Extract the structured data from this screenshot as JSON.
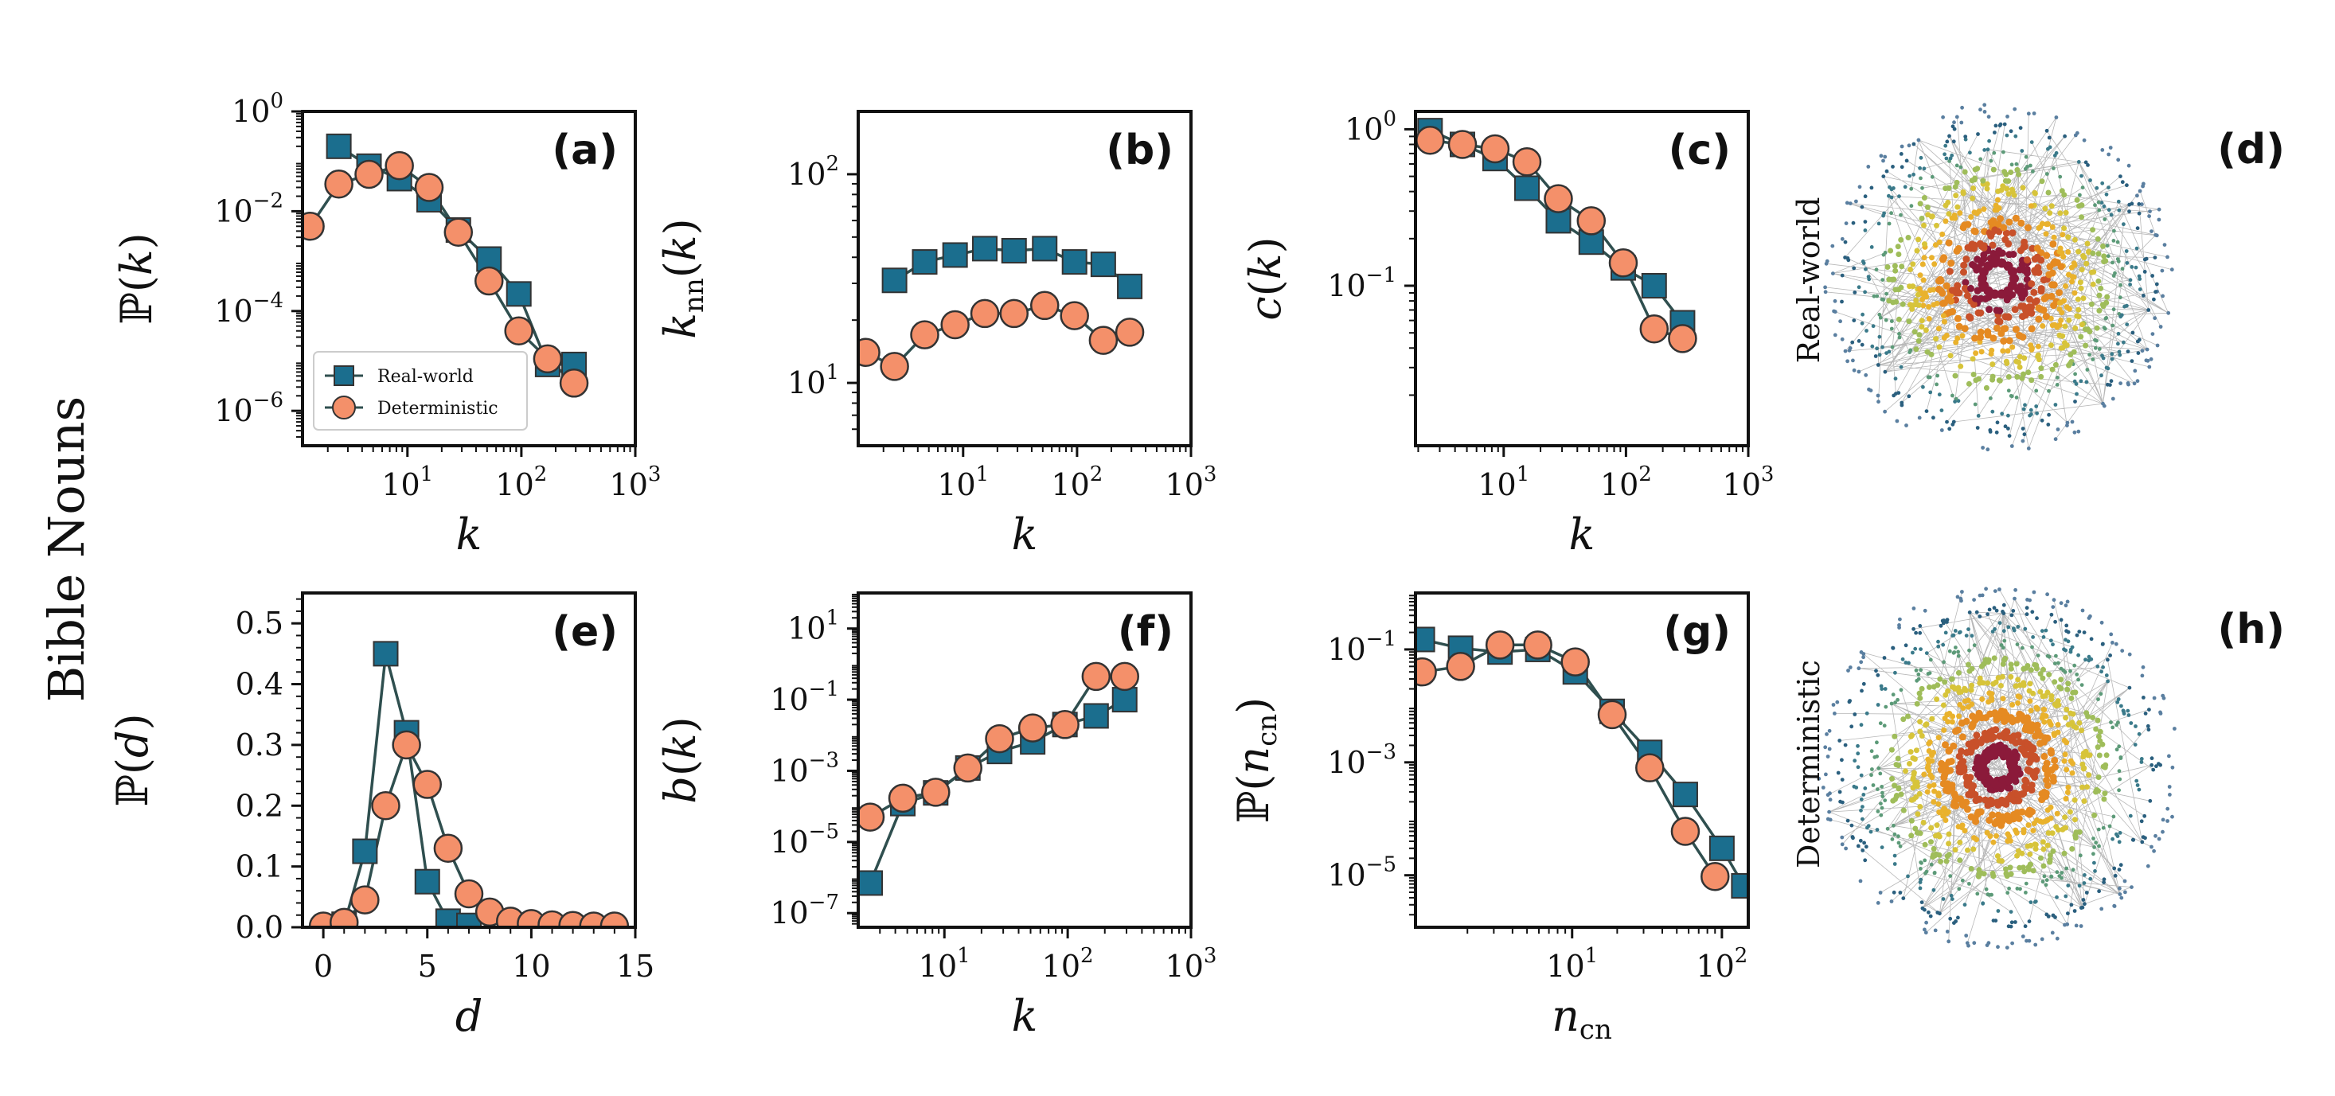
{
  "figure": {
    "row_title": "Bible Nouns",
    "colors": {
      "real": "#1b6e8e",
      "det": "#f4906a",
      "line": "#2f4f4f",
      "edge": "#333333"
    }
  },
  "legend": {
    "entries": [
      "Real-world",
      "Deterministic"
    ]
  },
  "network_panels": {
    "d": {
      "label": "(d)",
      "side_label": "Real-world"
    },
    "h": {
      "label": "(h)",
      "side_label": "Deterministic"
    }
  },
  "chart_data": [
    {
      "id": "a",
      "label": "(a)",
      "type": "line",
      "xscale": "log",
      "yscale": "log",
      "xlabel": "k",
      "ylabel": "ℙ(k)",
      "xlim": [
        1.2,
        1000
      ],
      "ylim": [
        2e-07,
        1
      ],
      "xticks": [
        {
          "v": 10,
          "base": "10",
          "exp": "1"
        },
        {
          "v": 100,
          "base": "10",
          "exp": "2"
        },
        {
          "v": 1000,
          "base": "10",
          "exp": "3"
        }
      ],
      "yticks": [
        {
          "v": 1,
          "base": "10",
          "exp": "0"
        },
        {
          "v": 0.01,
          "base": "10",
          "exp": "−2"
        },
        {
          "v": 0.0001,
          "base": "10",
          "exp": "−4"
        },
        {
          "v": 1e-06,
          "base": "10",
          "exp": "−6"
        }
      ],
      "legend": true,
      "series": [
        {
          "name": "Real-world",
          "marker": "square",
          "x": [
            2.5,
            4.6,
            8.5,
            15.5,
            28,
            52,
            95,
            170,
            290
          ],
          "y": [
            0.2,
            0.08,
            0.045,
            0.017,
            0.0042,
            0.0011,
            0.00022,
            8.5e-06,
            8.5e-06
          ]
        },
        {
          "name": "Deterministic",
          "marker": "circle",
          "x": [
            1.4,
            2.5,
            4.6,
            8.5,
            15.5,
            28,
            52,
            95,
            170,
            290
          ],
          "y": [
            0.005,
            0.035,
            0.055,
            0.082,
            0.03,
            0.0038,
            0.0004,
            4e-05,
            1.1e-05,
            3.6e-06
          ]
        }
      ]
    },
    {
      "id": "b",
      "label": "(b)",
      "type": "line",
      "xscale": "log",
      "yscale": "log",
      "xlabel": "k",
      "ylabel": "knn(k)",
      "xlim": [
        1.2,
        1000
      ],
      "ylim": [
        5,
        200
      ],
      "xticks": [
        {
          "v": 10,
          "base": "10",
          "exp": "1"
        },
        {
          "v": 100,
          "base": "10",
          "exp": "2"
        },
        {
          "v": 1000,
          "base": "10",
          "exp": "3"
        }
      ],
      "yticks": [
        {
          "v": 100,
          "base": "10",
          "exp": "2"
        },
        {
          "v": 10,
          "base": "10",
          "exp": "1"
        }
      ],
      "series": [
        {
          "name": "Real-world",
          "marker": "square",
          "x": [
            2.5,
            4.6,
            8.5,
            15.5,
            28,
            52,
            95,
            170,
            290
          ],
          "y": [
            31,
            38,
            41,
            44,
            43,
            44,
            38,
            37,
            29
          ]
        },
        {
          "name": "Deterministic",
          "marker": "circle",
          "x": [
            1.4,
            2.5,
            4.6,
            8.5,
            15.5,
            28,
            52,
            95,
            170,
            290
          ],
          "y": [
            14,
            12,
            17,
            19,
            21.5,
            21.5,
            23.5,
            21,
            16,
            17.5
          ]
        }
      ]
    },
    {
      "id": "c",
      "label": "(c)",
      "type": "line",
      "xscale": "log",
      "yscale": "log",
      "xlabel": "k",
      "ylabel": "c(k)",
      "xlim": [
        1.9,
        1000
      ],
      "ylim": [
        0.0095,
        1.3
      ],
      "xticks": [
        {
          "v": 10,
          "base": "10",
          "exp": "1"
        },
        {
          "v": 100,
          "base": "10",
          "exp": "2"
        },
        {
          "v": 1000,
          "base": "10",
          "exp": "3"
        }
      ],
      "yticks": [
        {
          "v": 1,
          "base": "10",
          "exp": "0"
        },
        {
          "v": 0.1,
          "base": "10",
          "exp": "−1"
        }
      ],
      "series": [
        {
          "name": "Real-world",
          "marker": "square",
          "x": [
            2.5,
            4.6,
            8.5,
            15.5,
            28,
            52,
            95,
            170,
            290
          ],
          "y": [
            0.98,
            0.8,
            0.65,
            0.42,
            0.26,
            0.19,
            0.13,
            0.1,
            0.058
          ]
        },
        {
          "name": "Deterministic",
          "marker": "circle",
          "x": [
            2.5,
            4.6,
            8.5,
            15.5,
            28,
            52,
            95,
            170,
            290
          ],
          "y": [
            0.85,
            0.8,
            0.75,
            0.62,
            0.36,
            0.26,
            0.14,
            0.053,
            0.046
          ]
        }
      ]
    },
    {
      "id": "e",
      "label": "(e)",
      "type": "line",
      "xscale": "linear",
      "yscale": "linear",
      "xlabel": "d",
      "ylabel": "ℙ(d)",
      "xlim": [
        -1,
        15
      ],
      "ylim": [
        0,
        0.55
      ],
      "xticks": [
        {
          "v": 0,
          "text": "0"
        },
        {
          "v": 5,
          "text": "5"
        },
        {
          "v": 10,
          "text": "10"
        },
        {
          "v": 15,
          "text": "15"
        }
      ],
      "yticks": [
        {
          "v": 0,
          "text": "0.0"
        },
        {
          "v": 0.1,
          "text": "0.1"
        },
        {
          "v": 0.2,
          "text": "0.2"
        },
        {
          "v": 0.3,
          "text": "0.3"
        },
        {
          "v": 0.4,
          "text": "0.4"
        },
        {
          "v": 0.5,
          "text": "0.5"
        }
      ],
      "series": [
        {
          "name": "Real-world",
          "marker": "square",
          "x": [
            1,
            2,
            3,
            4,
            5,
            6,
            7
          ],
          "y": [
            0.005,
            0.125,
            0.45,
            0.32,
            0.075,
            0.01,
            0.003
          ]
        },
        {
          "name": "Deterministic",
          "marker": "circle",
          "x": [
            0,
            1,
            2,
            3,
            4,
            5,
            6,
            7,
            8,
            9,
            10,
            11,
            12,
            13,
            14
          ],
          "y": [
            0.002,
            0.008,
            0.045,
            0.2,
            0.3,
            0.235,
            0.13,
            0.055,
            0.025,
            0.01,
            0.006,
            0.004,
            0.003,
            0.002,
            0.002
          ]
        }
      ]
    },
    {
      "id": "f",
      "label": "(f)",
      "type": "line",
      "xscale": "log",
      "yscale": "log",
      "xlabel": "k",
      "ylabel": "b(k)",
      "xlim": [
        2,
        1000
      ],
      "ylim": [
        4e-08,
        100
      ],
      "xticks": [
        {
          "v": 10,
          "base": "10",
          "exp": "1"
        },
        {
          "v": 100,
          "base": "10",
          "exp": "2"
        },
        {
          "v": 1000,
          "base": "10",
          "exp": "3"
        }
      ],
      "yticks": [
        {
          "v": 10,
          "base": "10",
          "exp": "1"
        },
        {
          "v": 0.1,
          "base": "10",
          "exp": "−1"
        },
        {
          "v": 0.001,
          "base": "10",
          "exp": "−3"
        },
        {
          "v": 1e-05,
          "base": "10",
          "exp": "−5"
        },
        {
          "v": 1e-07,
          "base": "10",
          "exp": "−7"
        }
      ],
      "series": [
        {
          "name": "Real-world",
          "marker": "square",
          "x": [
            2.5,
            4.6,
            8.5,
            15.5,
            28,
            52,
            95,
            170,
            290
          ],
          "y": [
            7e-07,
            0.00012,
            0.00024,
            0.0012,
            0.0035,
            0.0065,
            0.02,
            0.035,
            0.1
          ]
        },
        {
          "name": "Deterministic",
          "marker": "circle",
          "x": [
            2.5,
            4.6,
            8.5,
            15.5,
            28,
            52,
            95,
            170,
            290
          ],
          "y": [
            5e-05,
            0.00017,
            0.00025,
            0.0012,
            0.008,
            0.016,
            0.02,
            0.45,
            0.45
          ]
        }
      ]
    },
    {
      "id": "g",
      "label": "(g)",
      "type": "line",
      "xscale": "log",
      "yscale": "log",
      "xlabel": "ncn",
      "ylabel": "ℙ(ncn)",
      "xlim": [
        0.9,
        150
      ],
      "ylim": [
        1.2e-06,
        1
      ],
      "xticks": [
        {
          "v": 10,
          "base": "10",
          "exp": "1"
        },
        {
          "v": 100,
          "base": "10",
          "exp": "2"
        }
      ],
      "yticks": [
        {
          "v": 0.1,
          "base": "10",
          "exp": "−1"
        },
        {
          "v": 0.001,
          "base": "10",
          "exp": "−3"
        },
        {
          "v": 1e-05,
          "base": "10",
          "exp": "−5"
        }
      ],
      "series": [
        {
          "name": "Real-world",
          "marker": "square",
          "x": [
            1,
            1.8,
            3.3,
            5.9,
            10.5,
            18.5,
            33,
            57,
            100,
            140
          ],
          "y": [
            0.15,
            0.105,
            0.09,
            0.1,
            0.04,
            0.008,
            0.0015,
            0.00027,
            3e-05,
            6.5e-06
          ]
        },
        {
          "name": "Deterministic",
          "marker": "circle",
          "x": [
            1,
            1.8,
            3.3,
            5.9,
            10.5,
            18.5,
            33,
            57,
            90
          ],
          "y": [
            0.04,
            0.05,
            0.12,
            0.12,
            0.06,
            0.007,
            0.0008,
            6e-05,
            9.5e-06
          ]
        }
      ]
    }
  ]
}
